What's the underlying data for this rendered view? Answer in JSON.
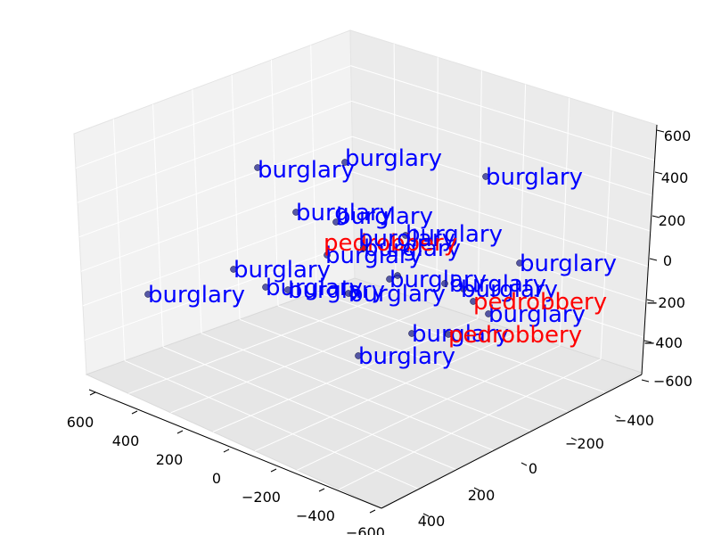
{
  "chart_data": {
    "type": "scatter",
    "projection": "3d",
    "title": "",
    "grid": true,
    "axes": {
      "x": {
        "ticks": [
          "600",
          "400",
          "200",
          "0",
          "−200",
          "−400",
          "−600"
        ]
      },
      "y": {
        "ticks": [
          "−400",
          "−200",
          "0",
          "200",
          "400"
        ]
      },
      "z": {
        "ticks": [
          "600",
          "400",
          "200",
          "0",
          "−200",
          "−400",
          "−600"
        ]
      }
    },
    "colors": {
      "burglary": "#0000ff",
      "pedrobbery": "#ff0000",
      "marker": "#2e3192"
    },
    "points": [
      {
        "label": "burglary"
      },
      {
        "label": "burglary"
      },
      {
        "label": "burglary"
      },
      {
        "label": "burglary"
      },
      {
        "label": "burglary"
      },
      {
        "label": "burglary"
      },
      {
        "label": "burglary"
      },
      {
        "label": "burglary"
      },
      {
        "label": "pedrobbery"
      },
      {
        "label": "burglary"
      },
      {
        "label": "burglary"
      },
      {
        "label": "burglary"
      },
      {
        "label": "burglary"
      },
      {
        "label": "burglary"
      },
      {
        "label": "burglary"
      },
      {
        "label": "burglary"
      },
      {
        "label": "burglary"
      },
      {
        "label": "burglary"
      },
      {
        "label": "burglary"
      },
      {
        "label": "pedrobbery"
      },
      {
        "label": "burglary"
      },
      {
        "label": "burglary"
      },
      {
        "label": "pedrobbery"
      },
      {
        "label": "burglary"
      }
    ]
  }
}
